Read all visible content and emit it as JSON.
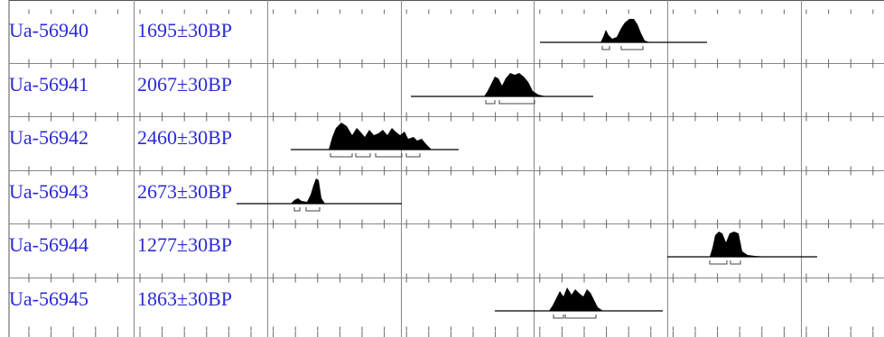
{
  "chart_data": {
    "type": "oxcal-multiplot",
    "title": "",
    "xlabel": "",
    "grid": true,
    "samples": [
      {
        "lab_id": "Ua-56940",
        "age": "1695±30BP"
      },
      {
        "lab_id": "Ua-56941",
        "age": "2067±30BP"
      },
      {
        "lab_id": "Ua-56942",
        "age": "2460±30BP"
      },
      {
        "lab_id": "Ua-56943",
        "age": "2673±30BP"
      },
      {
        "lab_id": "Ua-56944",
        "age": "1277±30BP"
      },
      {
        "lab_id": "Ua-56945",
        "age": "1863±30BP"
      }
    ]
  }
}
